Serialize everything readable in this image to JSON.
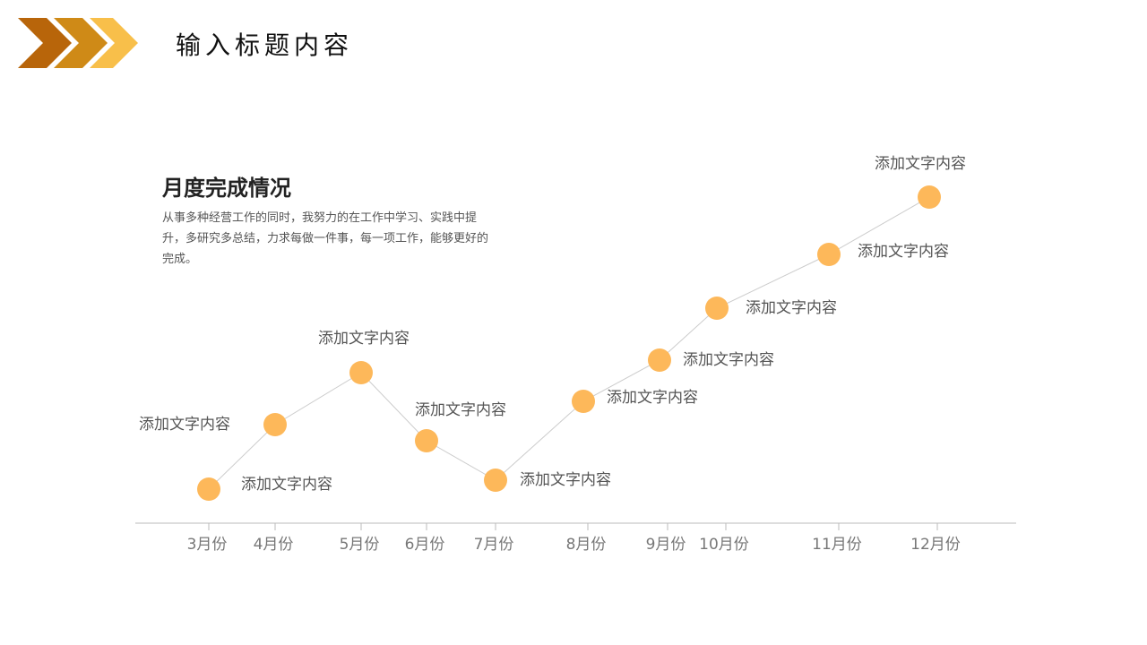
{
  "header": {
    "title": "输入标题内容"
  },
  "chart_data": {
    "type": "line",
    "title": "月度完成情况",
    "subtitle": "从事多种经营工作的同时，我努力的在工作中学习、实践中提升，多研究多总结，力求每做一件事，每一项工作，能够更好的完成。",
    "categories": [
      "3月份",
      "4月份",
      "5月份",
      "6月份",
      "7月份",
      "8月份",
      "9月份",
      "10月份",
      "11月份",
      "12月份"
    ],
    "values": [
      9.5,
      27.5,
      42,
      23,
      12,
      34,
      45.5,
      60,
      75,
      91
    ],
    "annotations": [
      "添加文字内容",
      "添加文字内容",
      "添加文字内容",
      "添加文字内容",
      "添加文字内容",
      "添加文字内容",
      "添加文字内容",
      "添加文字内容",
      "添加文字内容",
      "添加文字内容"
    ],
    "ylim": [
      0,
      100
    ],
    "color": "#fdb85a",
    "line_color": "#cccccc"
  }
}
